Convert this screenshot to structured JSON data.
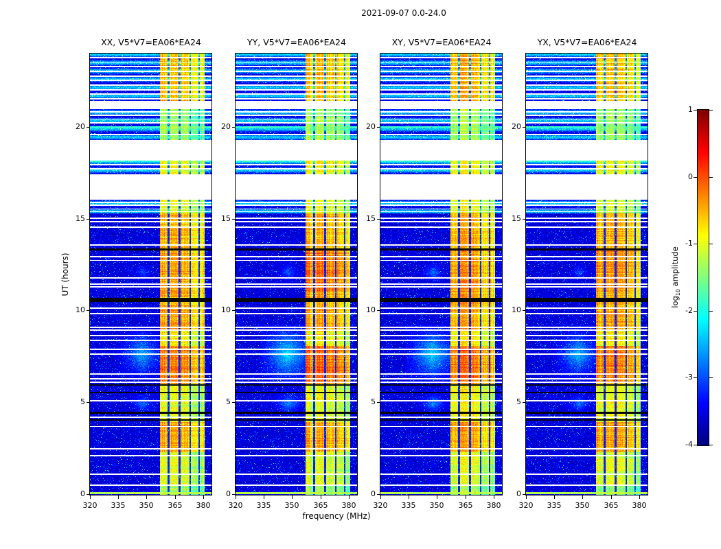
{
  "chart_data": {
    "type": "heatmap",
    "title": "2021-09-07 0.0-24.0",
    "xlabel": "frequency (MHz)",
    "ylabel": "UT (hours)",
    "x_range_mhz": [
      320,
      384.4
    ],
    "x_ticks": [
      320,
      335,
      350,
      365,
      380
    ],
    "y_range_hours": [
      0,
      24
    ],
    "y_ticks": [
      0,
      5,
      10,
      15,
      20
    ],
    "panels": [
      {
        "label": "XX, V5*V7=EA06*EA24"
      },
      {
        "label": "YY, V5*V7=EA06*EA24"
      },
      {
        "label": "XY, V5*V7=EA06*EA24"
      },
      {
        "label": "YX, V5*V7=EA06*EA24"
      }
    ],
    "colorbar": {
      "label": "log10 amplitude",
      "label_prefix": "log",
      "label_sub": "10",
      "label_suffix": " amplitude",
      "ticks": [
        1,
        0,
        -1,
        -2,
        -3,
        -4
      ],
      "range": [
        -4,
        1
      ],
      "colormap": "jet"
    },
    "heatmap_model": {
      "background_level": -3.55,
      "noise_sigma": 0.28,
      "speckle_prob": 0.045,
      "hot_pixel_prob": 0.0007,
      "rfi_band_mhz": [
        357.2,
        380.9
      ],
      "rfi_subbands_mhz": [
        [
          357.2,
          361.3,
          0
        ],
        [
          362.1,
          367.2,
          0.1
        ],
        [
          368,
          372.9,
          0
        ],
        [
          373.7,
          377.6,
          -0.15
        ],
        [
          378.4,
          380.9,
          -0.3
        ]
      ],
      "rfi_envelope": [
        [
          0,
          0.45,
          -1.4
        ],
        [
          0.45,
          2.3,
          -1.05
        ],
        [
          2.3,
          3.95,
          -0.5
        ],
        [
          3.95,
          6.05,
          -1.0
        ],
        [
          6.05,
          8.1,
          -0.4
        ],
        [
          8.1,
          8.95,
          -0.85
        ],
        [
          8.95,
          11.0,
          -0.5
        ],
        [
          11.0,
          13.3,
          -0.5
        ],
        [
          13.3,
          15.3,
          -0.55
        ],
        [
          15.3,
          16.05,
          -1.0
        ],
        [
          17.45,
          18.2,
          -0.95
        ],
        [
          19.3,
          21.0,
          -1.35
        ],
        [
          21.45,
          24.0,
          -0.6
        ]
      ],
      "panel_boosts": [
        {
          "t": [
            11.0,
            13.3
          ],
          "add": [
            0,
            0.25,
            0.05,
            0.1
          ]
        },
        {
          "t": [
            6.05,
            8.1
          ],
          "add": [
            0.1,
            0.25,
            0.15,
            0.1
          ]
        }
      ],
      "data_gaps_ut": [
        [
          16.05,
          17.45
        ],
        [
          18.2,
          19.3
        ],
        [
          21.0,
          21.45
        ]
      ],
      "gap_line_times_ut": [
        0.5,
        1.1,
        2.1,
        2.5,
        3.7,
        4.2,
        5.1,
        6.1,
        6.3,
        6.55,
        7.65,
        7.9,
        8.4,
        8.65,
        8.95,
        9.1,
        9.85,
        10.15,
        11.3,
        11.45,
        11.8,
        12.75,
        12.95,
        13.6,
        14.55,
        14.85,
        15.05,
        15.4,
        15.55,
        15.75,
        15.9,
        17.75,
        17.95,
        19.6,
        20.25,
        20.45,
        20.65,
        20.85,
        21.55,
        21.8,
        22.05,
        22.3,
        22.55,
        22.8,
        23.05,
        23.3,
        23.55,
        23.8
      ],
      "gap_line_halfwidth_ut": 0.035,
      "black_lines_ut": [
        [
          4.05,
          0.04
        ],
        [
          4.45,
          0.04
        ],
        [
          5.55,
          0.05
        ],
        [
          5.95,
          0.04
        ],
        [
          10.6,
          0.1
        ],
        [
          13.35,
          0.07
        ]
      ],
      "striped_sections": [
        [
          21.45,
          24.0
        ],
        [
          19.3,
          21.0
        ],
        [
          17.45,
          18.2
        ],
        [
          15.3,
          16.05
        ]
      ],
      "striped_bg_level": -2.95,
      "stripe_period_ut": 0.45,
      "stripe_amp": 0.55,
      "blobs": [
        {
          "t": [
            6.0,
            9.3
          ],
          "f": [
            333,
            362
          ],
          "level": -2.45,
          "panel_add": [
            0,
            0.25,
            0.2,
            0.05
          ]
        },
        {
          "t": [
            4.0,
            5.9
          ],
          "f": [
            336,
            360
          ],
          "level": -2.8,
          "panel_add": [
            0,
            0.15,
            0.1,
            0
          ]
        },
        {
          "t": [
            11.2,
            13.0
          ],
          "f": [
            338,
            358
          ],
          "level": -2.95,
          "panel_add": [
            0,
            0.1,
            0.15,
            0
          ]
        }
      ],
      "broadband_rows": [
        [
          0.07,
          -1.25
        ],
        [
          18.15,
          -2.0
        ],
        [
          20.0,
          -1.9
        ]
      ],
      "broadband_row_halfwidth_ut": 0.05
    }
  }
}
